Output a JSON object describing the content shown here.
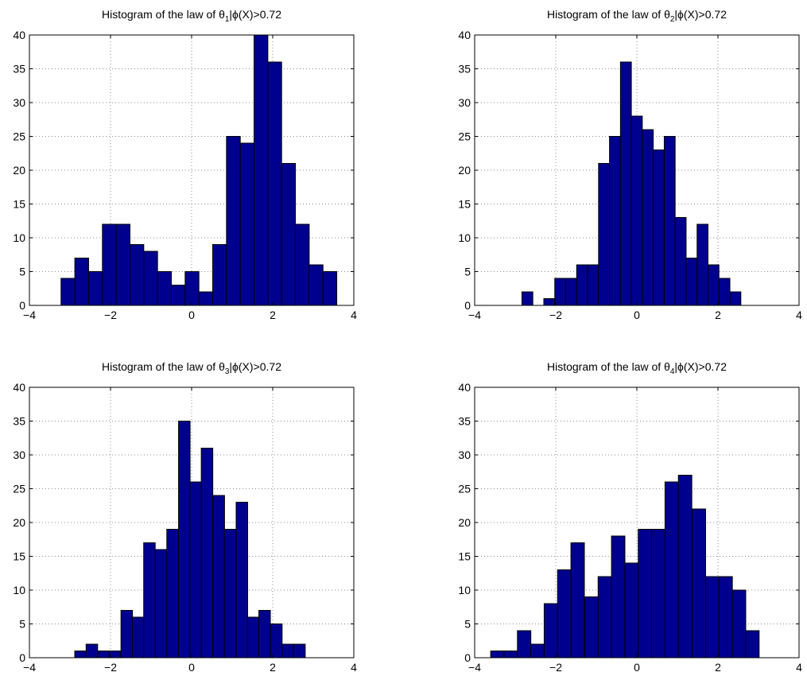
{
  "chart_data": [
    {
      "type": "bar",
      "title": {
        "prefix": "Histogram of the law of ",
        "symbol": "θ",
        "subscript": "1",
        "suffix": "|ϕ(X)>0.72"
      },
      "xlim": [
        -4,
        4
      ],
      "ylim": [
        0,
        40
      ],
      "xticks": [
        -4,
        -2,
        0,
        2,
        4
      ],
      "yticks": [
        0,
        5,
        10,
        15,
        20,
        25,
        30,
        35,
        40
      ],
      "grid": true,
      "bar_color": "#00008f",
      "bin_width": 0.34,
      "bins": [
        {
          "x": -3.05,
          "count": 4
        },
        {
          "x": -2.71,
          "count": 7
        },
        {
          "x": -2.37,
          "count": 5
        },
        {
          "x": -2.03,
          "count": 12
        },
        {
          "x": -1.69,
          "count": 12
        },
        {
          "x": -1.35,
          "count": 9
        },
        {
          "x": -1.01,
          "count": 8
        },
        {
          "x": -0.67,
          "count": 5
        },
        {
          "x": -0.33,
          "count": 3
        },
        {
          "x": 0.01,
          "count": 5
        },
        {
          "x": 0.35,
          "count": 2
        },
        {
          "x": 0.69,
          "count": 9
        },
        {
          "x": 1.03,
          "count": 25
        },
        {
          "x": 1.37,
          "count": 24
        },
        {
          "x": 1.71,
          "count": 40
        },
        {
          "x": 2.05,
          "count": 36
        },
        {
          "x": 2.39,
          "count": 21
        },
        {
          "x": 2.73,
          "count": 12
        },
        {
          "x": 3.07,
          "count": 6
        },
        {
          "x": 3.41,
          "count": 5
        }
      ]
    },
    {
      "type": "bar",
      "title": {
        "prefix": "Histogram of the law of ",
        "symbol": "θ",
        "subscript": "2",
        "suffix": "|ϕ(X)>0.72"
      },
      "xlim": [
        -4,
        4
      ],
      "ylim": [
        0,
        40
      ],
      "xticks": [
        -4,
        -2,
        0,
        2,
        4
      ],
      "yticks": [
        0,
        5,
        10,
        15,
        20,
        25,
        30,
        35,
        40
      ],
      "grid": true,
      "bar_color": "#00008f",
      "bin_width": 0.269,
      "bins": [
        {
          "x": -2.7,
          "count": 2
        },
        {
          "x": -2.43,
          "count": 0
        },
        {
          "x": -2.16,
          "count": 1
        },
        {
          "x": -1.89,
          "count": 4
        },
        {
          "x": -1.62,
          "count": 4
        },
        {
          "x": -1.35,
          "count": 6
        },
        {
          "x": -1.08,
          "count": 6
        },
        {
          "x": -0.81,
          "count": 21
        },
        {
          "x": -0.54,
          "count": 25
        },
        {
          "x": -0.27,
          "count": 36
        },
        {
          "x": 0.0,
          "count": 28
        },
        {
          "x": 0.27,
          "count": 26
        },
        {
          "x": 0.54,
          "count": 23
        },
        {
          "x": 0.81,
          "count": 25
        },
        {
          "x": 1.08,
          "count": 13
        },
        {
          "x": 1.35,
          "count": 7
        },
        {
          "x": 1.62,
          "count": 12
        },
        {
          "x": 1.89,
          "count": 6
        },
        {
          "x": 2.16,
          "count": 4
        },
        {
          "x": 2.43,
          "count": 2
        }
      ]
    },
    {
      "type": "bar",
      "title": {
        "prefix": "Histogram of the law of ",
        "symbol": "θ",
        "subscript": "3",
        "suffix": "|ϕ(X)>0.72"
      },
      "xlim": [
        -4,
        4
      ],
      "ylim": [
        0,
        40
      ],
      "xticks": [
        -4,
        -2,
        0,
        2,
        4
      ],
      "yticks": [
        0,
        5,
        10,
        15,
        20,
        25,
        30,
        35,
        40
      ],
      "grid": true,
      "bar_color": "#00008f",
      "bin_width": 0.284,
      "bins": [
        {
          "x": -2.74,
          "count": 1
        },
        {
          "x": -2.46,
          "count": 2
        },
        {
          "x": -2.17,
          "count": 1
        },
        {
          "x": -1.89,
          "count": 1
        },
        {
          "x": -1.6,
          "count": 7
        },
        {
          "x": -1.32,
          "count": 6
        },
        {
          "x": -1.04,
          "count": 17
        },
        {
          "x": -0.75,
          "count": 16
        },
        {
          "x": -0.47,
          "count": 19
        },
        {
          "x": -0.18,
          "count": 35
        },
        {
          "x": 0.1,
          "count": 26
        },
        {
          "x": 0.38,
          "count": 31
        },
        {
          "x": 0.67,
          "count": 24
        },
        {
          "x": 0.95,
          "count": 19
        },
        {
          "x": 1.24,
          "count": 23
        },
        {
          "x": 1.52,
          "count": 6
        },
        {
          "x": 1.8,
          "count": 7
        },
        {
          "x": 2.09,
          "count": 5
        },
        {
          "x": 2.37,
          "count": 2
        },
        {
          "x": 2.66,
          "count": 2
        }
      ]
    },
    {
      "type": "bar",
      "title": {
        "prefix": "Histogram of the law of ",
        "symbol": "θ",
        "subscript": "4",
        "suffix": "|ϕ(X)>0.72"
      },
      "xlim": [
        -4,
        4
      ],
      "ylim": [
        0,
        40
      ],
      "xticks": [
        -4,
        -2,
        0,
        2,
        4
      ],
      "yticks": [
        0,
        5,
        10,
        15,
        20,
        25,
        30,
        35,
        40
      ],
      "grid": true,
      "bar_color": "#00008f",
      "bin_width": 0.331,
      "bins": [
        {
          "x": -3.44,
          "count": 1
        },
        {
          "x": -3.11,
          "count": 1
        },
        {
          "x": -2.78,
          "count": 4
        },
        {
          "x": -2.45,
          "count": 2
        },
        {
          "x": -2.12,
          "count": 8
        },
        {
          "x": -1.79,
          "count": 13
        },
        {
          "x": -1.46,
          "count": 17
        },
        {
          "x": -1.12,
          "count": 9
        },
        {
          "x": -0.79,
          "count": 12
        },
        {
          "x": -0.46,
          "count": 18
        },
        {
          "x": -0.13,
          "count": 14
        },
        {
          "x": 0.2,
          "count": 19
        },
        {
          "x": 0.53,
          "count": 19
        },
        {
          "x": 0.86,
          "count": 26
        },
        {
          "x": 1.19,
          "count": 27
        },
        {
          "x": 1.53,
          "count": 22
        },
        {
          "x": 1.86,
          "count": 12
        },
        {
          "x": 2.19,
          "count": 12
        },
        {
          "x": 2.52,
          "count": 10
        },
        {
          "x": 2.85,
          "count": 4
        }
      ]
    }
  ]
}
